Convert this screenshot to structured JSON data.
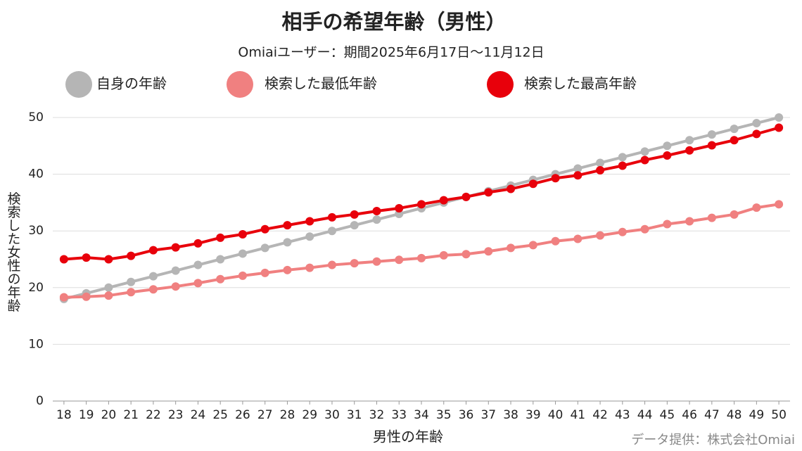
{
  "chart_data": {
    "type": "line",
    "title": "相手の希望年齢（男性）",
    "subtitle": "Omiaiユーザー：期間2025年6月17日〜11月12日",
    "x_label": "男性の年齢",
    "y_label": "検索した女性の年齢",
    "source": "データ提供：株式会社Omiai",
    "legend": "top",
    "grid": true,
    "x": [
      18,
      19,
      20,
      21,
      22,
      23,
      24,
      25,
      26,
      27,
      28,
      29,
      30,
      31,
      32,
      33,
      34,
      35,
      36,
      37,
      38,
      39,
      40,
      41,
      42,
      43,
      44,
      45,
      46,
      47,
      48,
      49,
      50
    ],
    "xlim": [
      17.5,
      50.5
    ],
    "xticks": [
      18,
      19,
      20,
      21,
      22,
      23,
      24,
      25,
      26,
      27,
      28,
      29,
      30,
      31,
      32,
      33,
      34,
      35,
      36,
      37,
      38,
      39,
      40,
      41,
      42,
      43,
      44,
      45,
      46,
      47,
      48,
      49,
      50
    ],
    "ylim": [
      0,
      50
    ],
    "yticks": [
      0,
      10,
      20,
      30,
      40,
      50
    ],
    "series": [
      {
        "name": "自身の年齢",
        "color": "#b5b5b5",
        "values": [
          18,
          19,
          20,
          21,
          22,
          23,
          24,
          25,
          26,
          27,
          28,
          29,
          30,
          31,
          32,
          33,
          34,
          35,
          36,
          37,
          38,
          39,
          40,
          41,
          42,
          43,
          44,
          45,
          46,
          47,
          48,
          49,
          50
        ]
      },
      {
        "name": "検索した最低年齢",
        "color": "#f08080",
        "values": [
          18.3,
          18.4,
          18.6,
          19.2,
          19.7,
          20.2,
          20.8,
          21.5,
          22.1,
          22.6,
          23.1,
          23.5,
          24.0,
          24.3,
          24.6,
          24.9,
          25.2,
          25.7,
          25.9,
          26.4,
          27.0,
          27.5,
          28.2,
          28.6,
          29.2,
          29.8,
          30.3,
          31.2,
          31.7,
          32.3,
          32.9,
          34.1,
          34.7
        ]
      },
      {
        "name": "検索した最高年齢",
        "color": "#e8000b",
        "values": [
          25.0,
          25.3,
          25.0,
          25.6,
          26.6,
          27.1,
          27.8,
          28.8,
          29.4,
          30.3,
          31.0,
          31.7,
          32.4,
          32.9,
          33.5,
          34.0,
          34.7,
          35.4,
          36.0,
          36.8,
          37.4,
          38.3,
          39.3,
          39.8,
          40.7,
          41.5,
          42.5,
          43.3,
          44.2,
          45.1,
          46.0,
          47.1,
          48.2
        ]
      }
    ]
  }
}
